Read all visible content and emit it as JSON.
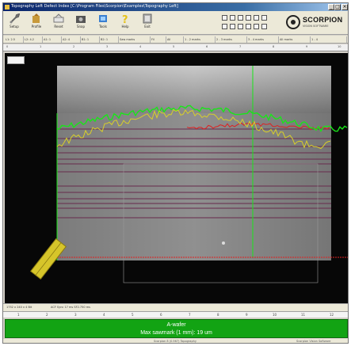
{
  "window": {
    "title": "Topography Left Defect Index [C:\\Program Files\\Scorpion\\Examples\\Topography Left]",
    "minimize": "_",
    "maximize": "□",
    "close": "×"
  },
  "toolbar": {
    "buttons": [
      {
        "label": "Setup",
        "icon": "wrench-icon"
      },
      {
        "label": "Profile",
        "icon": "profile-icon"
      },
      {
        "label": "Reset",
        "icon": "reset-icon"
      },
      {
        "label": "Snap",
        "icon": "camera-icon"
      },
      {
        "label": "Tools",
        "icon": "tools-icon"
      },
      {
        "label": "Help",
        "icon": "help-icon"
      },
      {
        "label": "Exit",
        "icon": "exit-icon"
      }
    ]
  },
  "logo": {
    "name": "SCORPION",
    "tagline": "VISION SOFTWARE"
  },
  "filters": [
    "L1: 2.5",
    "L2: 4.2",
    "A1: 1",
    "A2: 4",
    "B1: 1",
    "B2: 1",
    "Saw marks",
    "Fil",
    "All",
    "1 - 2 marks",
    "2 - 3 marks",
    "3 - 4 marks",
    "All marks",
    "1 - 4"
  ],
  "scale": [
    "0",
    "1",
    "2",
    "3",
    "4",
    "5",
    "6",
    "7",
    "8",
    "9",
    "10"
  ],
  "status": {
    "left": "1752 x 240 x 4 Bit",
    "middle": "ACF Sync 17 ms  SF2.750 ms"
  },
  "ruler": [
    "1",
    "2",
    "3",
    "4",
    "5",
    "6",
    "7",
    "8",
    "9",
    "10",
    "11",
    "12"
  ],
  "result": {
    "line1": "A-wafer",
    "line2": "Max sawmark (1 mm):  19 um",
    "color": "#12a313"
  },
  "footer": {
    "left": "Scorpion 8 (0.567) Topography",
    "right": "Scorpion Vision Software"
  },
  "colors": {
    "profile_green": "#19e619",
    "profile_yellow": "#d8cf2a",
    "profile_red": "#e02020",
    "grid_line": "#6a3050",
    "marker_yellow": "#d6c52a"
  }
}
